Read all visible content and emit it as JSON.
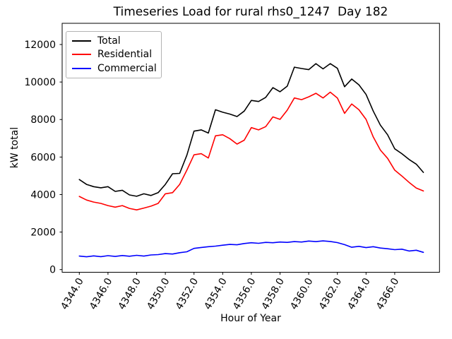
{
  "chart_data": {
    "type": "line",
    "title": "Timeseries Load for rural rhs0_1247  Day 182",
    "xlabel": "Hour of Year",
    "ylabel": "kW total",
    "legend_position": "upper left",
    "grid": false,
    "x_tick_labels": [
      "4344.0",
      "4346.0",
      "4348.0",
      "4350.0",
      "4352.0",
      "4354.0",
      "4356.0",
      "4358.0",
      "4360.0",
      "4362.0",
      "4364.0",
      "4366.0"
    ],
    "x_tick_values": [
      4344,
      4346,
      4348,
      4350,
      4352,
      4354,
      4356,
      4358,
      4360,
      4362,
      4364,
      4366
    ],
    "x_tick_rotation": 60,
    "y_tick_labels": [
      "0",
      "2000",
      "4000",
      "6000",
      "8000",
      "10000",
      "12000"
    ],
    "y_tick_values": [
      0,
      2000,
      4000,
      6000,
      8000,
      10000,
      12000
    ],
    "xlim": [
      4342.8,
      4369.2
    ],
    "ylim": [
      -130,
      13130
    ],
    "x": [
      4344,
      4344.5,
      4345,
      4345.5,
      4346,
      4346.5,
      4347,
      4347.5,
      4348,
      4348.5,
      4349,
      4349.5,
      4350,
      4350.5,
      4351,
      4351.5,
      4352,
      4352.5,
      4353,
      4353.5,
      4354,
      4354.5,
      4355,
      4355.5,
      4356,
      4356.5,
      4357,
      4357.5,
      4358,
      4358.5,
      4359,
      4359.5,
      4360,
      4360.5,
      4361,
      4361.5,
      4362,
      4362.5,
      4363,
      4363.5,
      4364,
      4364.5,
      4365,
      4365.5,
      4366,
      4366.5,
      4367,
      4367.5,
      4368
    ],
    "series": [
      {
        "name": "Total",
        "color": "#000000",
        "values": [
          4800,
          4540,
          4420,
          4360,
          4420,
          4170,
          4230,
          3980,
          3910,
          4040,
          3950,
          4100,
          4540,
          5110,
          5130,
          6100,
          7380,
          7450,
          7280,
          8520,
          8390,
          8290,
          8160,
          8450,
          9020,
          8960,
          9180,
          9700,
          9480,
          9780,
          10790,
          10720,
          10660,
          10980,
          10700,
          10980,
          10730,
          9750,
          10160,
          9850,
          9340,
          8450,
          7700,
          7190,
          6440,
          6180,
          5870,
          5620,
          5180
        ]
      },
      {
        "name": "Residential",
        "color": "#ff0000",
        "values": [
          3900,
          3710,
          3600,
          3530,
          3410,
          3330,
          3410,
          3260,
          3180,
          3280,
          3380,
          3530,
          4040,
          4100,
          4540,
          5300,
          6120,
          6180,
          5950,
          7130,
          7190,
          6980,
          6690,
          6900,
          7570,
          7450,
          7620,
          8140,
          8010,
          8500,
          9150,
          9060,
          9210,
          9400,
          9150,
          9460,
          9150,
          8330,
          8830,
          8520,
          8010,
          7070,
          6370,
          5930,
          5300,
          4990,
          4650,
          4350,
          4190
        ]
      },
      {
        "name": "Commercial",
        "color": "#0000ff",
        "values": [
          720,
          680,
          730,
          690,
          740,
          700,
          750,
          710,
          760,
          720,
          780,
          800,
          850,
          830,
          900,
          950,
          1130,
          1180,
          1220,
          1250,
          1300,
          1340,
          1320,
          1390,
          1430,
          1400,
          1450,
          1430,
          1470,
          1450,
          1490,
          1470,
          1520,
          1490,
          1530,
          1500,
          1440,
          1330,
          1190,
          1240,
          1170,
          1220,
          1150,
          1110,
          1060,
          1090,
          990,
          1030,
          920
        ]
      }
    ]
  }
}
